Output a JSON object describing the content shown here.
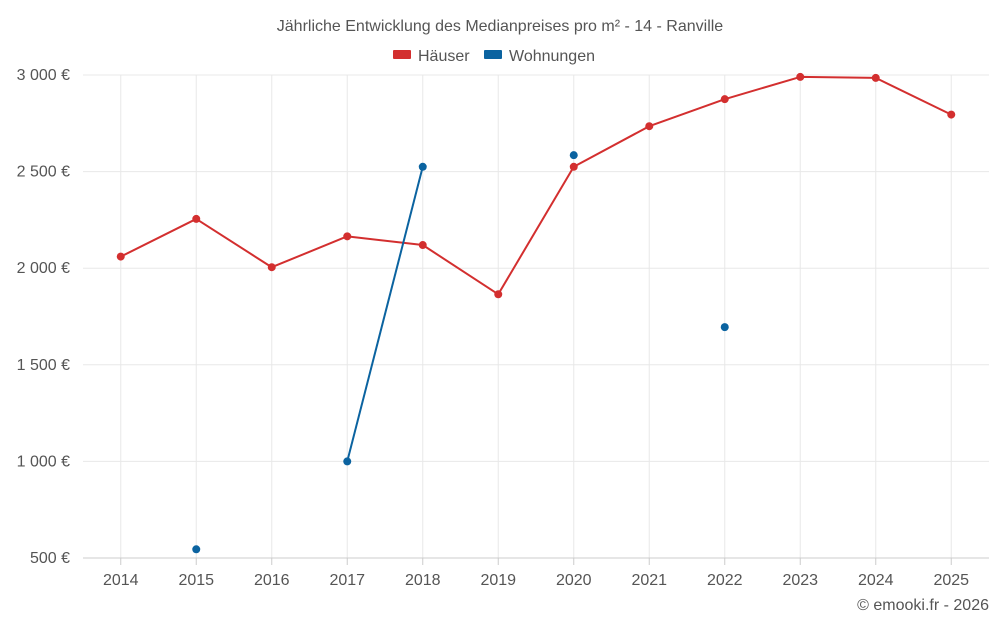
{
  "chart_data": {
    "type": "line",
    "title": "Jährliche Entwicklung des Medianpreises pro m² - 14 - Ranville",
    "categories": [
      "2014",
      "2015",
      "2016",
      "2017",
      "2018",
      "2019",
      "2020",
      "2021",
      "2022",
      "2023",
      "2024",
      "2025"
    ],
    "y_ticks": [
      500,
      1000,
      1500,
      2000,
      2500,
      3000
    ],
    "y_tick_labels": [
      "500 €",
      "1 000 €",
      "1 500 €",
      "2 000 €",
      "2 500 €",
      "3 000 €"
    ],
    "ylim": [
      500,
      3000
    ],
    "grid": true,
    "legend_position": "top-center",
    "series": [
      {
        "name": "Häuser",
        "color": "#d32f2f",
        "values": [
          2060,
          2255,
          2005,
          2165,
          2120,
          1865,
          2525,
          2735,
          2875,
          2990,
          2985,
          2795
        ]
      },
      {
        "name": "Wohnungen",
        "color": "#0b63a0",
        "values": [
          null,
          545,
          null,
          1000,
          2525,
          null,
          2585,
          null,
          1695,
          null,
          null,
          null
        ]
      }
    ],
    "credit": "© emooki.fr - 2026"
  }
}
